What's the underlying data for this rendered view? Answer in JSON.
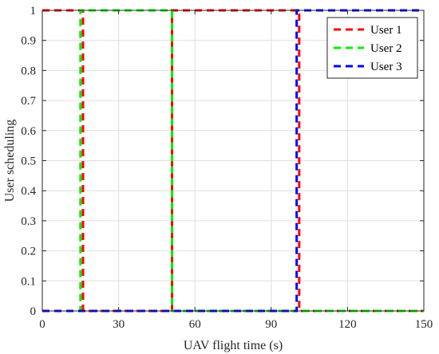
{
  "chart_data": {
    "type": "line",
    "title": "",
    "xlabel": "UAV flight time (s)",
    "ylabel": "User scheduling",
    "xlim": [
      0,
      150
    ],
    "ylim": [
      0,
      1
    ],
    "x_ticks": [
      0,
      30,
      60,
      90,
      120,
      150
    ],
    "y_ticks": [
      0,
      0.1,
      0.2,
      0.3,
      0.4,
      0.5,
      0.6,
      0.7,
      0.8,
      0.9,
      1
    ],
    "grid": true,
    "legend_position": "top-right",
    "series": [
      {
        "name": "User 1",
        "color": "#ff0000",
        "dash": "dashed",
        "x": [
          0,
          15,
          15,
          16,
          16,
          50,
          50,
          51,
          51,
          100,
          100,
          101,
          101,
          150
        ],
        "y": [
          1,
          1,
          1,
          1,
          0,
          0,
          0,
          0,
          1,
          1,
          1,
          1,
          0,
          0
        ]
      },
      {
        "name": "User 2",
        "color": "#00ee00",
        "dash": "dashed",
        "x": [
          0,
          15,
          15,
          50,
          50,
          51,
          51,
          150
        ],
        "y": [
          0,
          0,
          1,
          1,
          1,
          1,
          0,
          0
        ]
      },
      {
        "name": "User 3",
        "color": "#0000ff",
        "dash": "dashed",
        "x": [
          0,
          100,
          100,
          150
        ],
        "y": [
          0,
          0,
          1,
          1
        ]
      }
    ]
  }
}
